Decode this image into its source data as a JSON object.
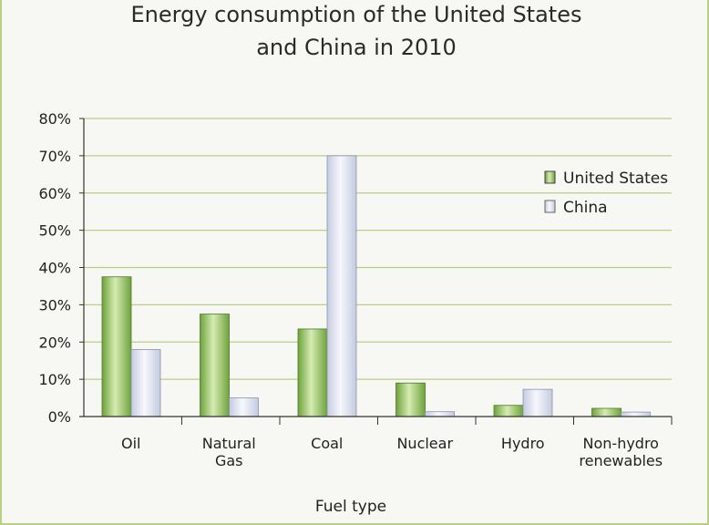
{
  "chart_data": {
    "type": "bar",
    "title": [
      "Energy consumption of the United States",
      "and China in 2010"
    ],
    "xlabel": "Fuel type",
    "ylabel": "",
    "ylim": [
      0,
      80
    ],
    "y_ticks": [
      "0%",
      "10%",
      "20%",
      "30%",
      "40%",
      "50%",
      "60%",
      "70%",
      "80%"
    ],
    "grid": true,
    "legend_position": "right",
    "categories": [
      [
        "Oil"
      ],
      [
        "Natural",
        "Gas"
      ],
      [
        "Coal"
      ],
      [
        "Nuclear"
      ],
      [
        "Hydro"
      ],
      [
        "Non-hydro",
        "renewables"
      ]
    ],
    "series": [
      {
        "name": "United States",
        "values": [
          37.5,
          27.5,
          23.5,
          9,
          3,
          2.2
        ],
        "color": "#6ea23c",
        "color_light": "#d6ecb2"
      },
      {
        "name": "China",
        "values": [
          18,
          5,
          70,
          1.3,
          7.3,
          1.2
        ],
        "color": "#c4cbe0",
        "color_light": "#f7f8fc"
      }
    ]
  },
  "colors": {
    "grid": "#b9cf86",
    "axis": "#333333",
    "background": "#f7f7f3"
  }
}
